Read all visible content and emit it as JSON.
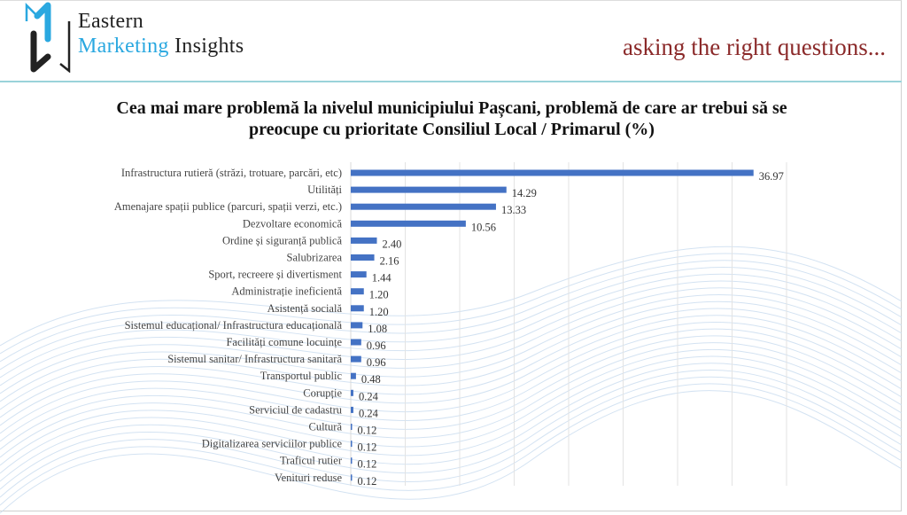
{
  "header": {
    "logo_line1": "Eastern",
    "logo_line2_blue": "Marketing",
    "logo_line2_dark": "Insights",
    "tagline": "asking the right questions..."
  },
  "colors": {
    "bar": "#4472c4",
    "tagline": "#8b2a2a",
    "logo_blue": "#2aa8e0"
  },
  "chart_data": {
    "type": "bar",
    "orientation": "horizontal",
    "title": "Cea mai mare problemă la nivelul municipiului Pașcani, problemă de care ar trebui să se preocupe cu prioritate Consiliul Local / Primarul (%)",
    "title_line1": "Cea mai mare problemă la nivelul municipiului Pașcani, problemă de care ar trebui să se",
    "title_line2": "preocupe cu prioritate Consiliul Local / Primarul (%)",
    "xlim": [
      0,
      40
    ],
    "grid_step": 5,
    "grid": true,
    "categories": [
      "Infrastructura rutieră (străzi, trotuare, parcări, etc)",
      "Utilități",
      "Amenajare spații publice (parcuri, spații verzi, etc.)",
      "Dezvoltare economică",
      "Ordine și siguranță publică",
      "Salubrizarea",
      "Sport, recreere și divertisment",
      "Administrație ineficientă",
      "Asistență socială",
      "Sistemul educațional/ Infrastructura educațională",
      "Facilități comune locuințe",
      "Sistemul sanitar/ Infrastructura sanitară",
      "Transportul public",
      "Corupție",
      "Serviciul de cadastru",
      "Cultură",
      "Digitalizarea serviciilor publice",
      "Traficul rutier",
      "Venituri reduse"
    ],
    "values": [
      36.97,
      14.29,
      13.33,
      10.56,
      2.4,
      2.16,
      1.44,
      1.2,
      1.2,
      1.08,
      0.96,
      0.96,
      0.48,
      0.24,
      0.24,
      0.12,
      0.12,
      0.12,
      0.12
    ],
    "labels": [
      "36.97",
      "14.29",
      "13.33",
      "10.56",
      "2.40",
      "2.16",
      "1.44",
      "1.20",
      "1.20",
      "1.08",
      "0.96",
      "0.96",
      "0.48",
      "0.24",
      "0.24",
      "0.12",
      "0.12",
      "0.12",
      "0.12"
    ]
  }
}
